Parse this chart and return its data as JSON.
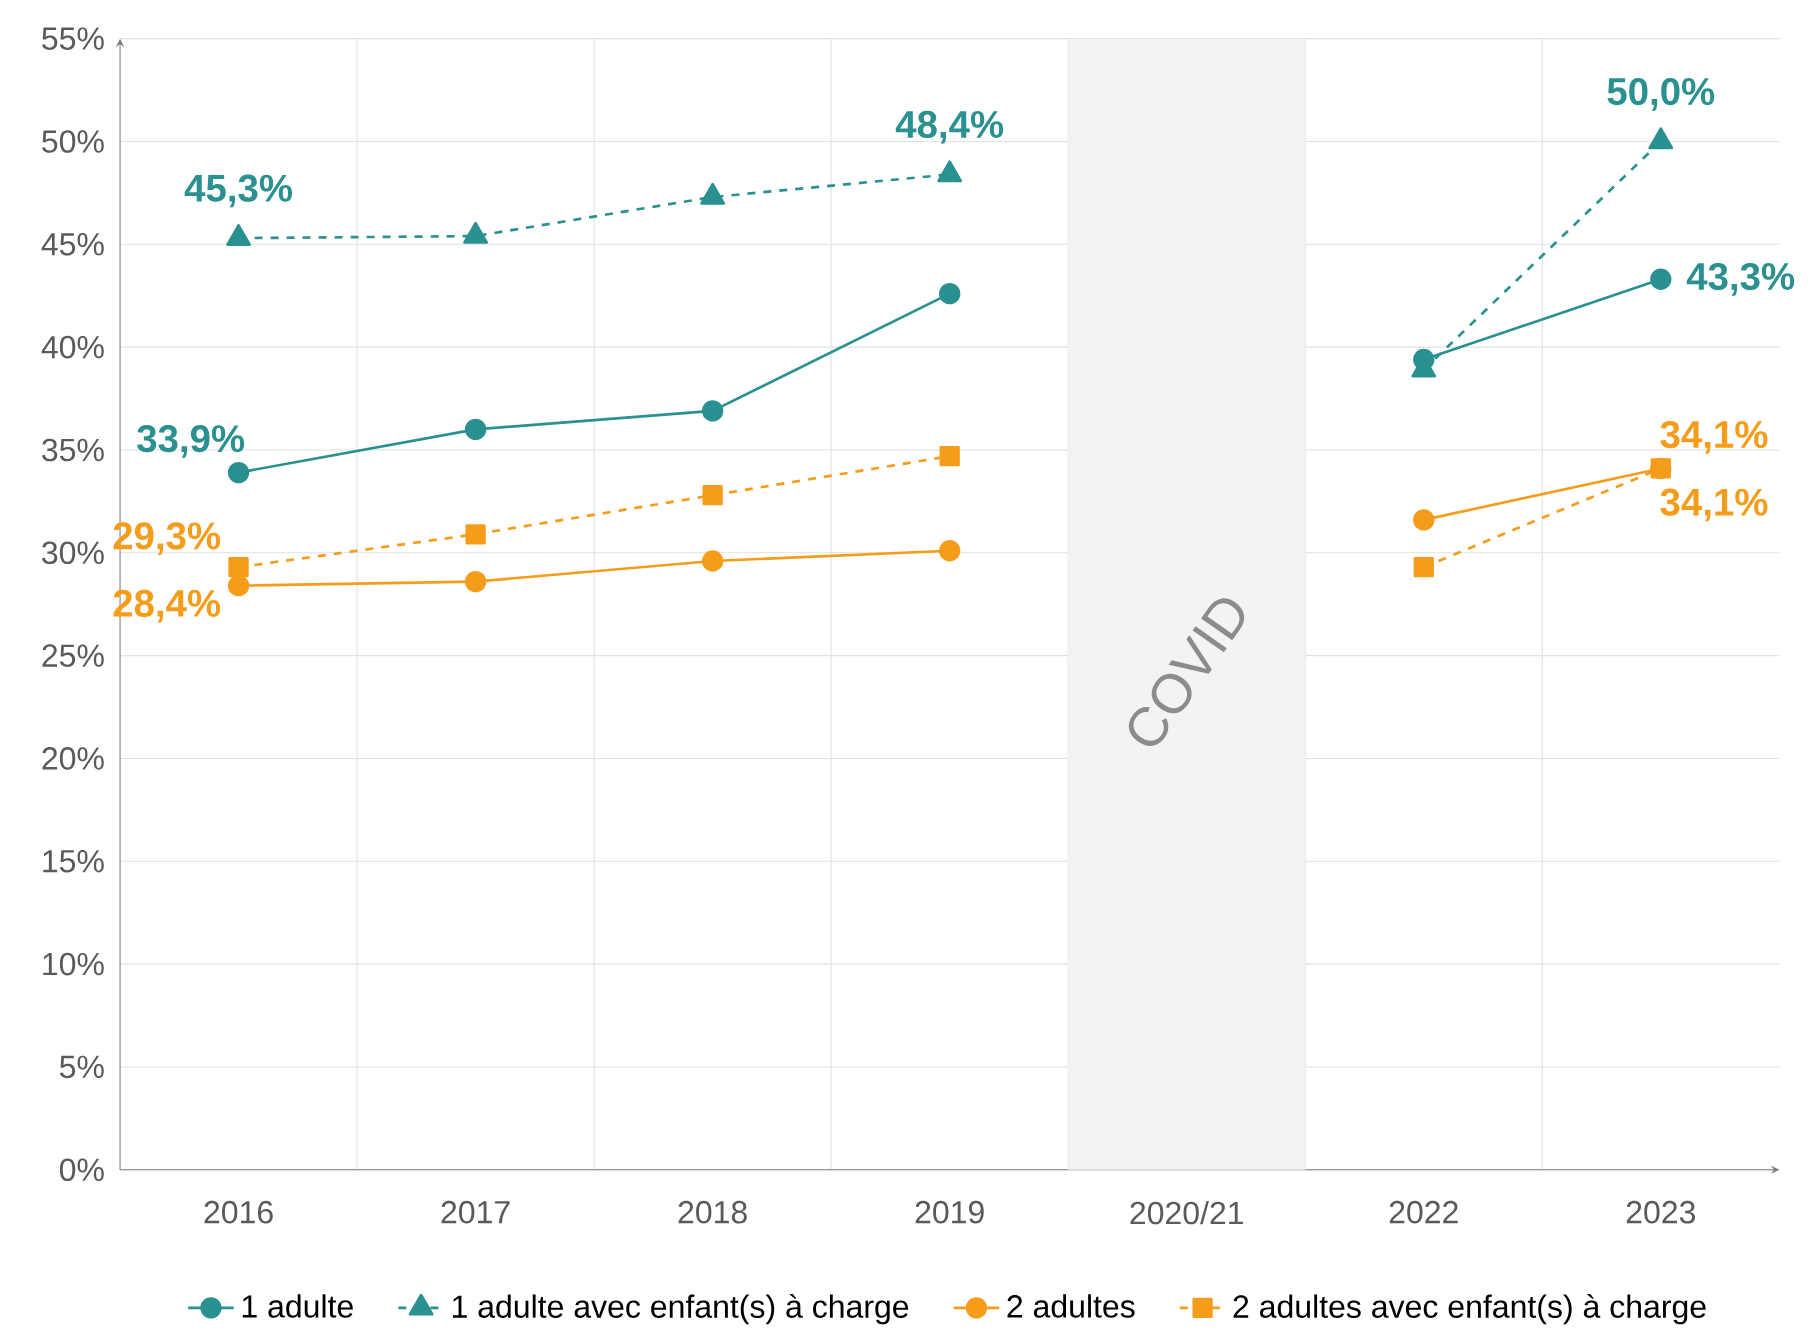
{
  "chart_data": {
    "type": "line",
    "categories": [
      "2016",
      "2017",
      "2018",
      "2019",
      "2020/21",
      "2022",
      "2023"
    ],
    "series": [
      {
        "name": "1 adulte",
        "color": "#2a9090",
        "marker": "circle",
        "line_style": "solid",
        "values": [
          33.9,
          36.0,
          36.9,
          42.6,
          null,
          39.4,
          43.3
        ],
        "value_labels": [
          "33,9%",
          null,
          null,
          null,
          null,
          null,
          "43,3%"
        ]
      },
      {
        "name": "1 adulte avec enfant(s) à charge",
        "color": "#2a9090",
        "marker": "triangle",
        "line_style": "dashed",
        "values": [
          45.3,
          45.4,
          47.3,
          48.4,
          null,
          38.9,
          50.0
        ],
        "value_labels": [
          "45,3%",
          null,
          null,
          "48,4%",
          null,
          null,
          "50,0%"
        ]
      },
      {
        "name": "2 adultes",
        "color": "#f59c1a",
        "marker": "circle",
        "line_style": "solid",
        "values": [
          28.4,
          28.6,
          29.6,
          30.1,
          null,
          31.6,
          34.1
        ],
        "value_labels": [
          "28,4%",
          null,
          null,
          null,
          null,
          null,
          "34,1%"
        ]
      },
      {
        "name": "2 adultes avec enfant(s) à charge",
        "color": "#f59c1a",
        "marker": "square",
        "line_style": "dashed",
        "values": [
          29.3,
          30.9,
          32.8,
          34.7,
          null,
          29.3,
          34.1
        ],
        "value_labels": [
          "29,3%",
          null,
          null,
          null,
          null,
          null,
          "34,1%"
        ]
      }
    ],
    "ylim": [
      0,
      55
    ],
    "yticks": [
      {
        "value": 0,
        "label": "0%"
      },
      {
        "value": 5,
        "label": "5%"
      },
      {
        "value": 10,
        "label": "10%"
      },
      {
        "value": 15,
        "label": "15%"
      },
      {
        "value": 20,
        "label": "20%"
      },
      {
        "value": 25,
        "label": "25%"
      },
      {
        "value": 30,
        "label": "30%"
      },
      {
        "value": 35,
        "label": "35%"
      },
      {
        "value": 40,
        "label": "40%"
      },
      {
        "value": 45,
        "label": "45%"
      },
      {
        "value": 50,
        "label": "50%"
      },
      {
        "value": 55,
        "label": "55%"
      }
    ],
    "bands": [
      {
        "axis": "x",
        "from": "2020/21",
        "to": "2020/21",
        "label": "COVID",
        "color": "#f3f3f3"
      }
    ],
    "grid": true,
    "legend": "bottom"
  }
}
